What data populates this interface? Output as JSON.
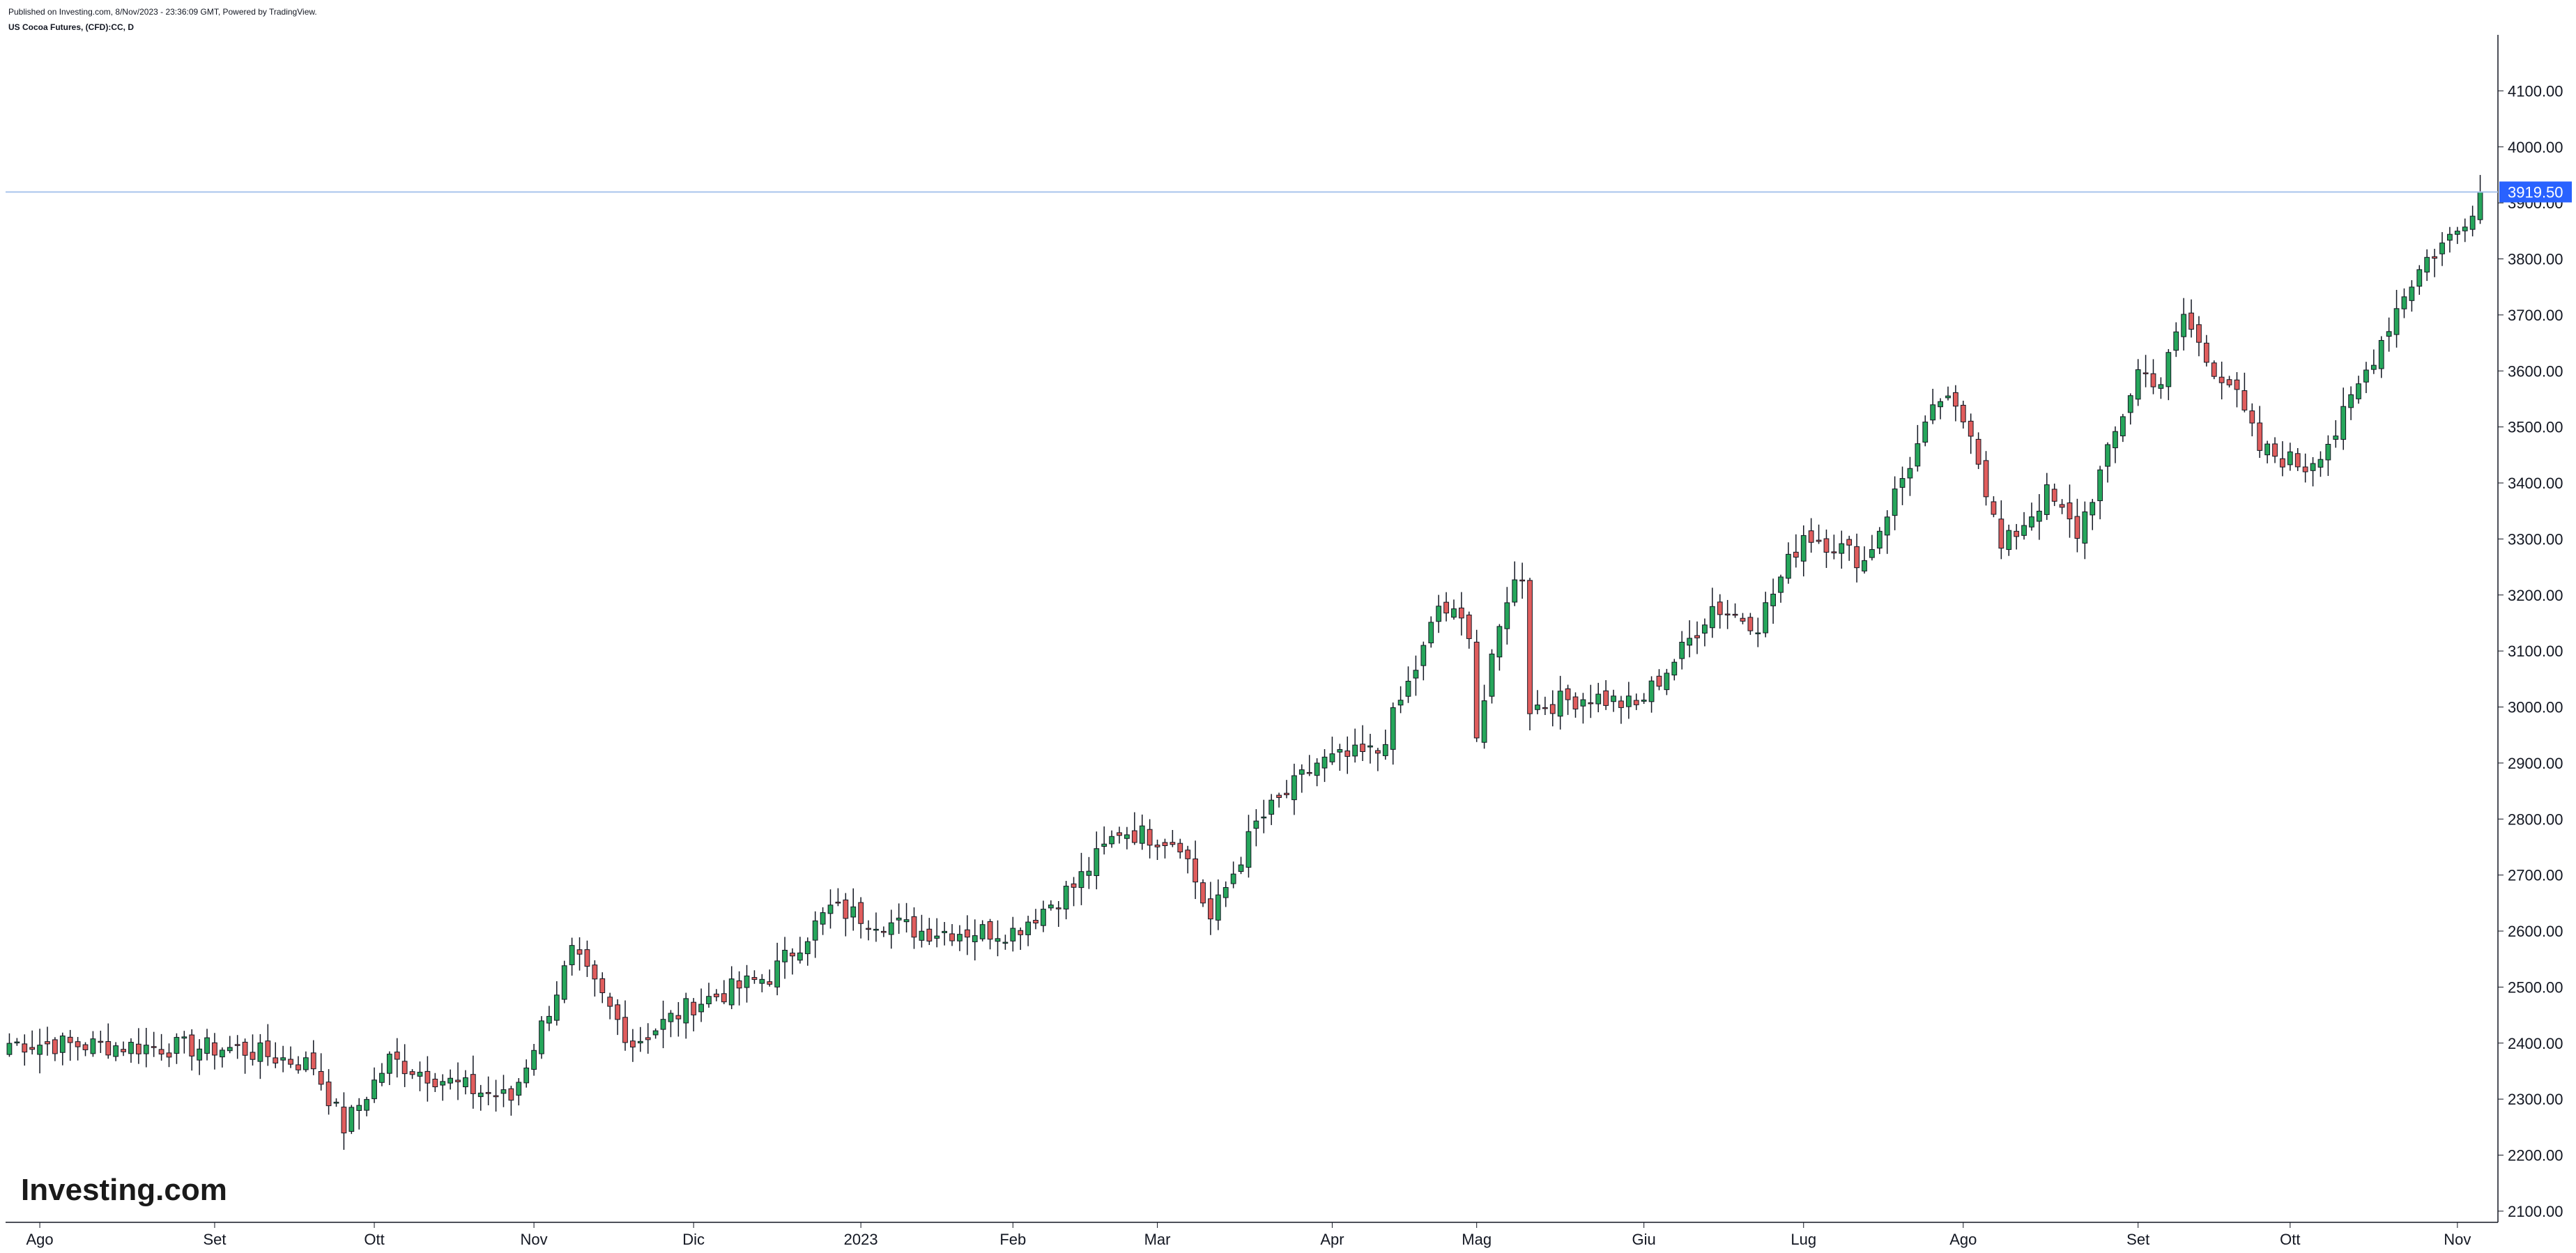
{
  "header": {
    "published": "Published on Investing.com, 8/Nov/2023 - 23:36:09 GMT, Powered by TradingView.",
    "symbol": "US Cocoa Futures, (CFD):CC, D"
  },
  "logo": {
    "text": "Investing.com"
  },
  "colors": {
    "up": "#26a65b",
    "down": "#e05d5d",
    "wick": "#131722",
    "price_line": "#a8c4ec",
    "price_label_bg": "#2962ff",
    "axis": "#131722",
    "text": "#131722"
  },
  "chart_data": {
    "type": "candlestick",
    "title": "US Cocoa Futures, (CFD):CC, D",
    "interval": "D",
    "y_axis": {
      "position": "right",
      "min": 2080,
      "max": 4200,
      "ticks": [
        "2100.00",
        "2200.00",
        "2300.00",
        "2400.00",
        "2500.00",
        "2600.00",
        "2700.00",
        "2800.00",
        "2900.00",
        "3000.00",
        "3100.00",
        "3200.00",
        "3300.00",
        "3400.00",
        "3500.00",
        "3600.00",
        "3700.00",
        "3800.00",
        "3900.00",
        "4000.00",
        "4100.00"
      ]
    },
    "x_axis": {
      "labels": [
        "Ago",
        "Set",
        "Ott",
        "Nov",
        "Dic",
        "2023",
        "Feb",
        "Mar",
        "Apr",
        "Mag",
        "Giu",
        "Lug",
        "Ago",
        "Set",
        "Ott",
        "Nov"
      ],
      "label_index": [
        4,
        27,
        48,
        69,
        90,
        112,
        132,
        151,
        174,
        193,
        215,
        236,
        257,
        280,
        300,
        322
      ]
    },
    "last_price": {
      "value": 3919.5,
      "label": "3919.50"
    },
    "grid": false,
    "legend": "none",
    "ohlc_key_points": [
      [
        0,
        2400
      ],
      [
        30,
        2390
      ],
      [
        40,
        2360
      ],
      [
        44,
        2250
      ],
      [
        50,
        2370
      ],
      [
        60,
        2320
      ],
      [
        66,
        2300
      ],
      [
        74,
        2560
      ],
      [
        82,
        2400
      ],
      [
        90,
        2470
      ],
      [
        100,
        2520
      ],
      [
        108,
        2640
      ],
      [
        120,
        2600
      ],
      [
        132,
        2600
      ],
      [
        140,
        2680
      ],
      [
        146,
        2780
      ],
      [
        154,
        2760
      ],
      [
        158,
        2620
      ],
      [
        164,
        2790
      ],
      [
        172,
        2900
      ],
      [
        180,
        2920
      ],
      [
        186,
        3100
      ],
      [
        188,
        3180
      ],
      [
        192,
        3140
      ],
      [
        193,
        2950
      ],
      [
        197,
        3200
      ],
      [
        199,
        3240
      ],
      [
        200,
        3000
      ],
      [
        208,
        3020
      ],
      [
        214,
        3000
      ],
      [
        220,
        3100
      ],
      [
        224,
        3180
      ],
      [
        230,
        3150
      ],
      [
        236,
        3310
      ],
      [
        240,
        3290
      ],
      [
        244,
        3260
      ],
      [
        248,
        3380
      ],
      [
        254,
        3550
      ],
      [
        258,
        3500
      ],
      [
        262,
        3280
      ],
      [
        268,
        3380
      ],
      [
        272,
        3310
      ],
      [
        276,
        3450
      ],
      [
        280,
        3600
      ],
      [
        283,
        3580
      ],
      [
        286,
        3700
      ],
      [
        289,
        3620
      ],
      [
        292,
        3580
      ],
      [
        296,
        3460
      ],
      [
        302,
        3430
      ],
      [
        306,
        3490
      ],
      [
        310,
        3600
      ],
      [
        315,
        3740
      ],
      [
        318,
        3800
      ],
      [
        322,
        3850
      ],
      [
        325,
        3919.5
      ]
    ]
  }
}
